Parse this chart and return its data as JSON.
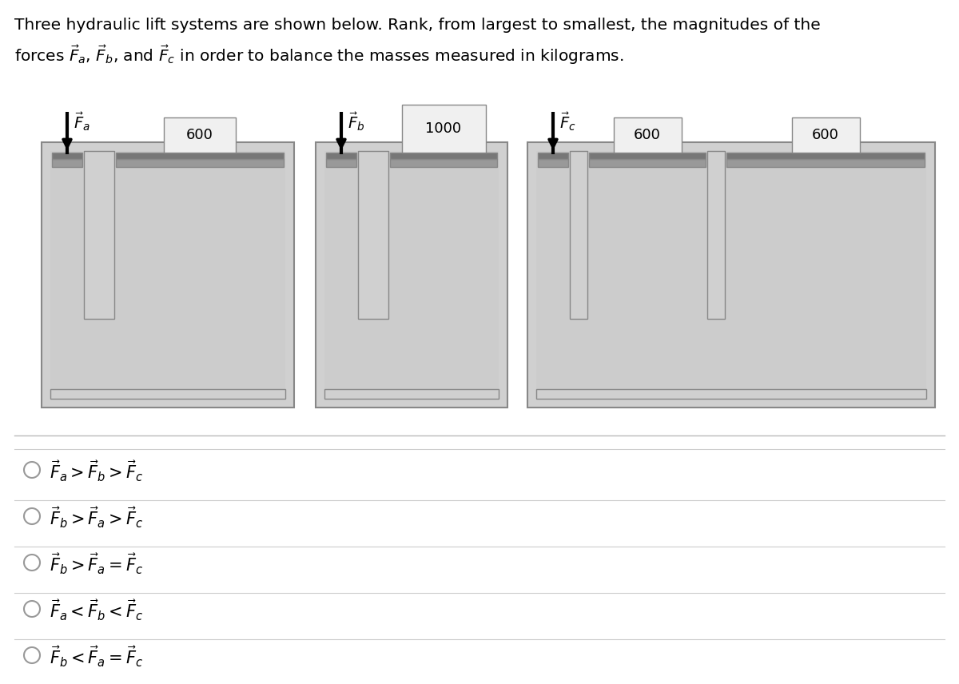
{
  "title_line1": "Three hydraulic lift systems are shown below. Rank, from largest to smallest, the magnitudes of the",
  "title_line2": "forces $\\vec{F}_a$, $\\vec{F}_b$, and $\\vec{F}_c$ in order to balance the masses measured in kilograms.",
  "bg": "#ffffff",
  "options": [
    "$\\vec{F}_a > \\vec{F}_b > \\vec{F}_c$",
    "$\\vec{F}_b > \\vec{F}_a > \\vec{F}_c$",
    "$\\vec{F}_b > \\vec{F}_a = \\vec{F}_c$",
    "$\\vec{F}_a < \\vec{F}_b < \\vec{F}_c$",
    "$\\vec{F}_b < \\vec{F}_a = \\vec{F}_c$"
  ],
  "outer_fill": "#d0d0d0",
  "outer_edge": "#888888",
  "fluid_fill": "#cccccc",
  "piston_fill": "#999999",
  "piston_dark": "#777777",
  "inner_wall": "#ffffff",
  "mass_fill": "#f0f0f0",
  "mass_edge": "#888888"
}
